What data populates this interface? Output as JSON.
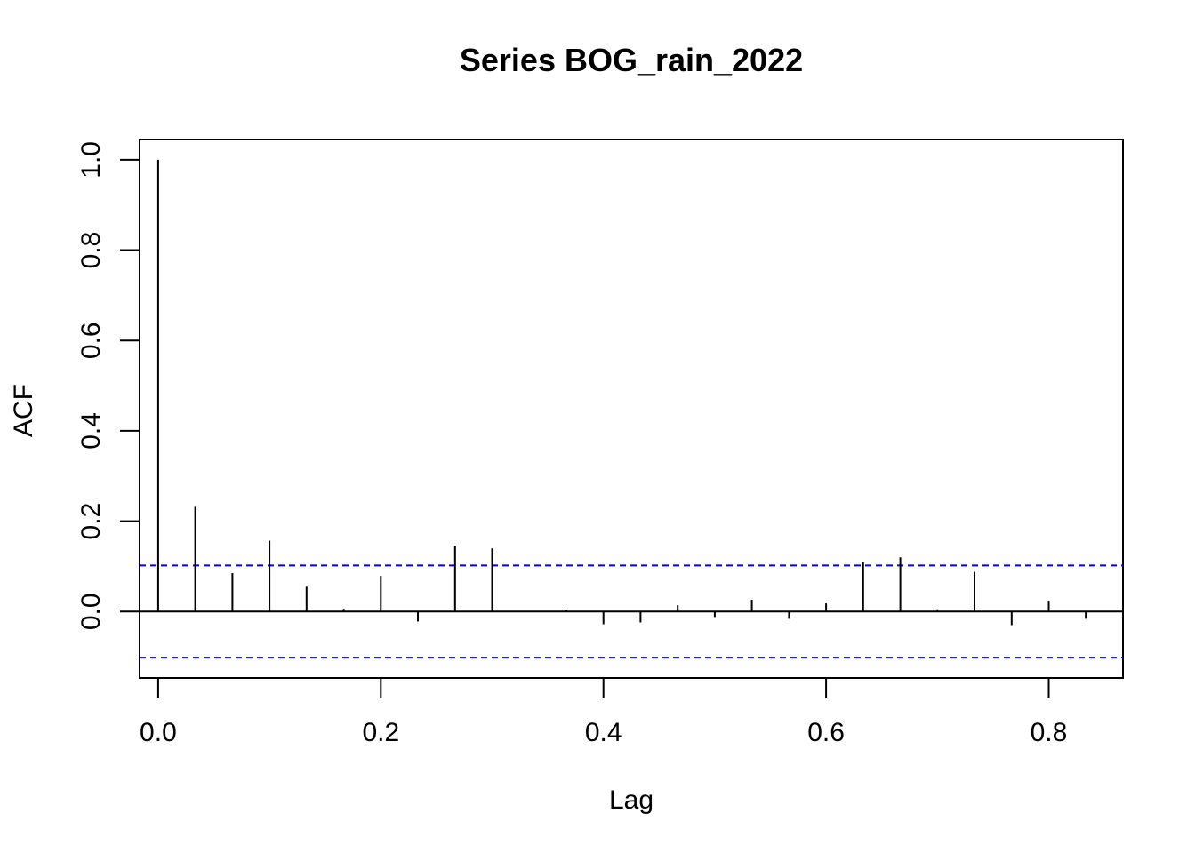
{
  "chart_data": {
    "type": "bar",
    "title": "Series  BOG_rain_2022",
    "xlabel": "Lag",
    "ylabel": "ACF",
    "xlim": [
      -0.0167,
      0.8667
    ],
    "ylim": [
      -0.147,
      1.045
    ],
    "x_ticks": [
      "0.0",
      "0.2",
      "0.4",
      "0.6",
      "0.8"
    ],
    "y_ticks": [
      "0.0",
      "0.2",
      "0.4",
      "0.6",
      "0.8",
      "1.0"
    ],
    "confidence_bound": 0.102,
    "confidence_color": "#0000ff",
    "grid": false,
    "lags": [
      0.0,
      0.0333,
      0.0667,
      0.1,
      0.1333,
      0.1667,
      0.2,
      0.2333,
      0.2667,
      0.3,
      0.3333,
      0.3667,
      0.4,
      0.4333,
      0.4667,
      0.5,
      0.5333,
      0.5667,
      0.6,
      0.6333,
      0.6667,
      0.7,
      0.7333,
      0.7667,
      0.8,
      0.8333
    ],
    "values": [
      1.0,
      0.232,
      0.085,
      0.157,
      0.055,
      0.006,
      0.079,
      -0.022,
      0.145,
      0.14,
      0.0,
      0.004,
      -0.028,
      -0.024,
      0.014,
      -0.012,
      0.026,
      -0.016,
      0.018,
      0.11,
      0.12,
      0.005,
      0.088,
      -0.03,
      0.024,
      -0.016
    ]
  }
}
